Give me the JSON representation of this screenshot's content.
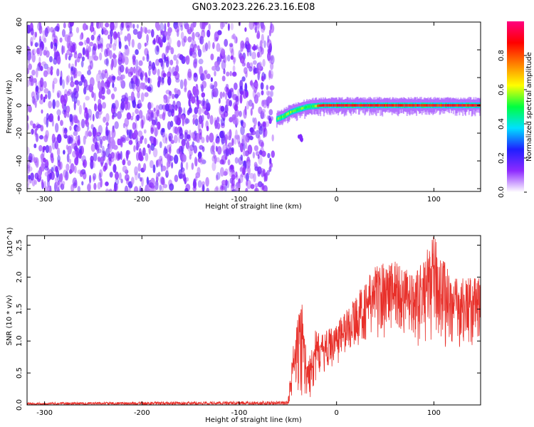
{
  "chart_data": [
    {
      "type": "heatmap",
      "title": "GN03.2023.226.23.16.E08",
      "xlabel": "Height of straight line (km)",
      "ylabel": "Frequency (Hz)",
      "xlim": [
        -318,
        148
      ],
      "ylim": [
        -62,
        60
      ],
      "xticks": [
        -300,
        -200,
        -100,
        0,
        100
      ],
      "yticks": [
        60,
        40,
        20,
        0,
        -20,
        -40,
        -60
      ],
      "noise_region_x": [
        -318,
        -65
      ],
      "ridge_start": [
        -62,
        -10
      ],
      "ridge": [
        [
          -62,
          -10
        ],
        [
          -55,
          -8
        ],
        [
          -48,
          -5
        ],
        [
          -40,
          -3
        ],
        [
          -30,
          -1
        ],
        [
          -15,
          0
        ],
        [
          0,
          0
        ],
        [
          50,
          0
        ],
        [
          100,
          0
        ],
        [
          148,
          0
        ]
      ],
      "colorbar": {
        "label": "Normalized spectral amplitude",
        "range": [
          0,
          1
        ],
        "ticks": [
          "0.0",
          "0.2",
          "0.4",
          "0.6",
          "0.8"
        ],
        "colormap": [
          "#ffffff",
          "#8e2bff",
          "#1f1fff",
          "#00e0ff",
          "#00ff40",
          "#ffff00",
          "#ff8000",
          "#ff0000",
          "#ff0080"
        ]
      }
    },
    {
      "type": "line",
      "xlabel": "Height of straight line (km)",
      "ylabel": "SNR (10 * v/v)",
      "y_multiplier": "(x10^4)",
      "xlim": [
        -318,
        148
      ],
      "ylim": [
        0,
        2.65
      ],
      "xticks": [
        -300,
        -200,
        -100,
        0,
        100
      ],
      "yticks": [
        "0.0",
        "0.5",
        "1.0",
        "1.5",
        "2.0",
        "2.5"
      ],
      "color": "#e8302a",
      "envelope": [
        {
          "x": -318,
          "lo": 0.0,
          "hi": 0.04
        },
        {
          "x": -50,
          "lo": 0.0,
          "hi": 0.06
        },
        {
          "x": -45,
          "lo": 0.1,
          "hi": 0.9
        },
        {
          "x": -40,
          "lo": 0.1,
          "hi": 1.35
        },
        {
          "x": -35,
          "lo": 0.1,
          "hi": 1.7
        },
        {
          "x": -30,
          "lo": 0.05,
          "hi": 0.6
        },
        {
          "x": -25,
          "lo": 0.1,
          "hi": 1.2
        },
        {
          "x": -15,
          "lo": 0.5,
          "hi": 1.1
        },
        {
          "x": 0,
          "lo": 0.6,
          "hi": 1.3
        },
        {
          "x": 20,
          "lo": 0.9,
          "hi": 1.7
        },
        {
          "x": 40,
          "lo": 1.0,
          "hi": 2.2
        },
        {
          "x": 60,
          "lo": 1.1,
          "hi": 2.3
        },
        {
          "x": 80,
          "lo": 0.9,
          "hi": 2.0
        },
        {
          "x": 100,
          "lo": 1.0,
          "hi": 2.65
        },
        {
          "x": 120,
          "lo": 0.8,
          "hi": 2.0
        },
        {
          "x": 148,
          "lo": 0.9,
          "hi": 2.0
        }
      ]
    }
  ]
}
